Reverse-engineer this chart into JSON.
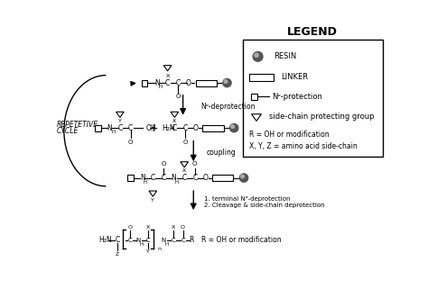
{
  "background_color": "#ffffff",
  "legend_title": "LEGEND",
  "legend_resin": "RESIN",
  "legend_linker": "LINKER",
  "legend_nprot": "Nᵅ-protection",
  "legend_sidechain": "side-chain protecting group",
  "legend_text1": "R = OH or modification",
  "legend_text2": "X, Y, Z = amino acid side-chain",
  "left_label_line1": "REPETETIVE",
  "left_label_line2": "CYCLE",
  "step1_label": "Nᵅ-deprotection",
  "step2_label": "coupling",
  "step3_line1": "1. terminal Nᵅ-deprotection",
  "step3_line2": "2. Cleavage & side-chain deprotection",
  "final_label": "R = OH or modification",
  "fig_width": 4.74,
  "fig_height": 3.31,
  "dpi": 100
}
